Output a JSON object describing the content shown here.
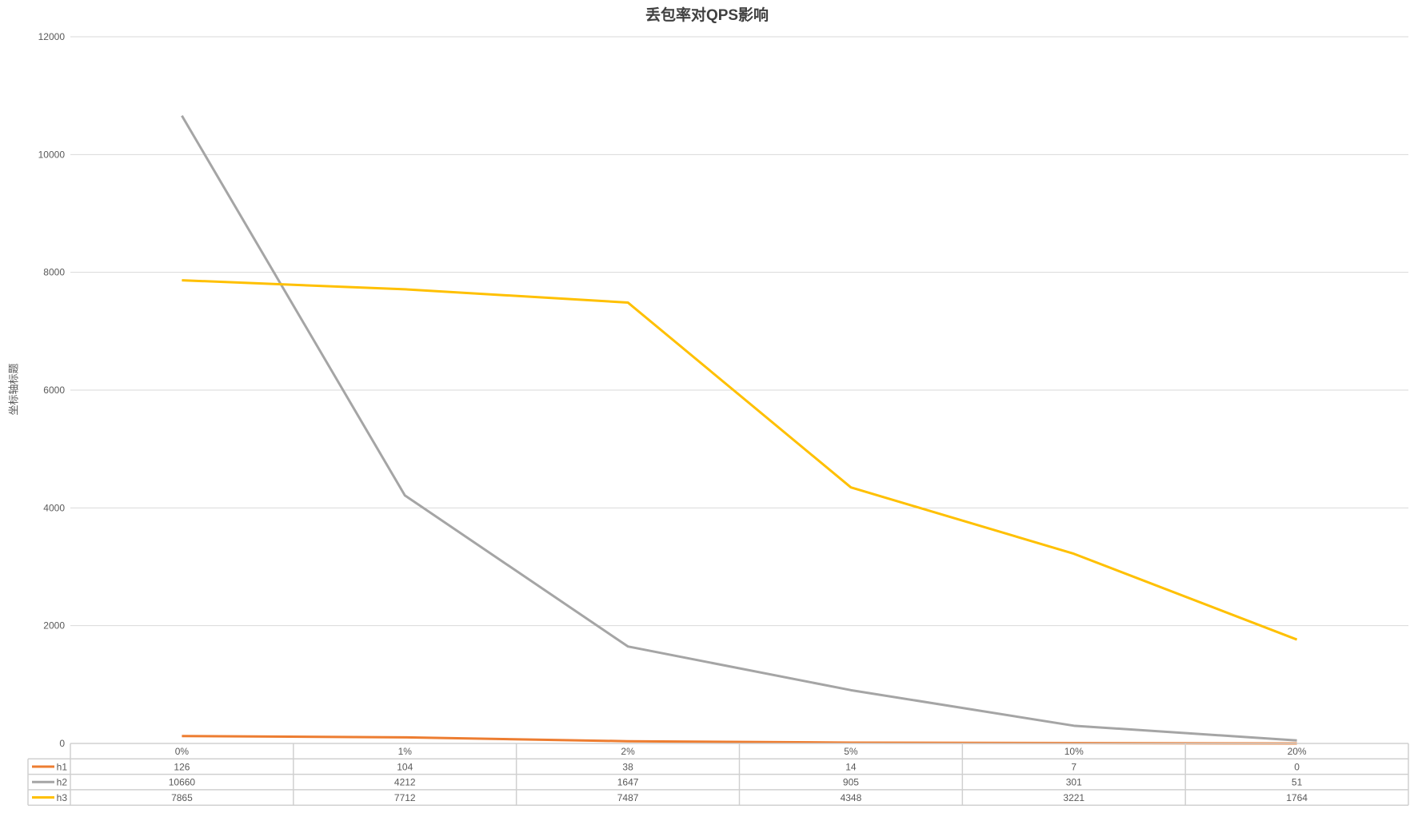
{
  "chart_data": {
    "type": "line",
    "title": "丢包率对QPS影响",
    "xlabel": "",
    "ylabel": "坐标轴标题",
    "categories": [
      "0%",
      "1%",
      "2%",
      "5%",
      "10%",
      "20%"
    ],
    "ylim": [
      0,
      12000
    ],
    "yticks": [
      0,
      2000,
      4000,
      6000,
      8000,
      10000,
      12000
    ],
    "grid": true,
    "legend": "data-table",
    "series": [
      {
        "name": "h1",
        "color": "#ED7D31",
        "values": [
          126,
          104,
          38,
          14,
          7,
          0
        ]
      },
      {
        "name": "h2",
        "color": "#A5A5A5",
        "values": [
          10660,
          4212,
          1647,
          905,
          301,
          51
        ]
      },
      {
        "name": "h3",
        "color": "#FFC000",
        "values": [
          7865,
          7712,
          7487,
          4348,
          3221,
          1764
        ]
      }
    ]
  }
}
